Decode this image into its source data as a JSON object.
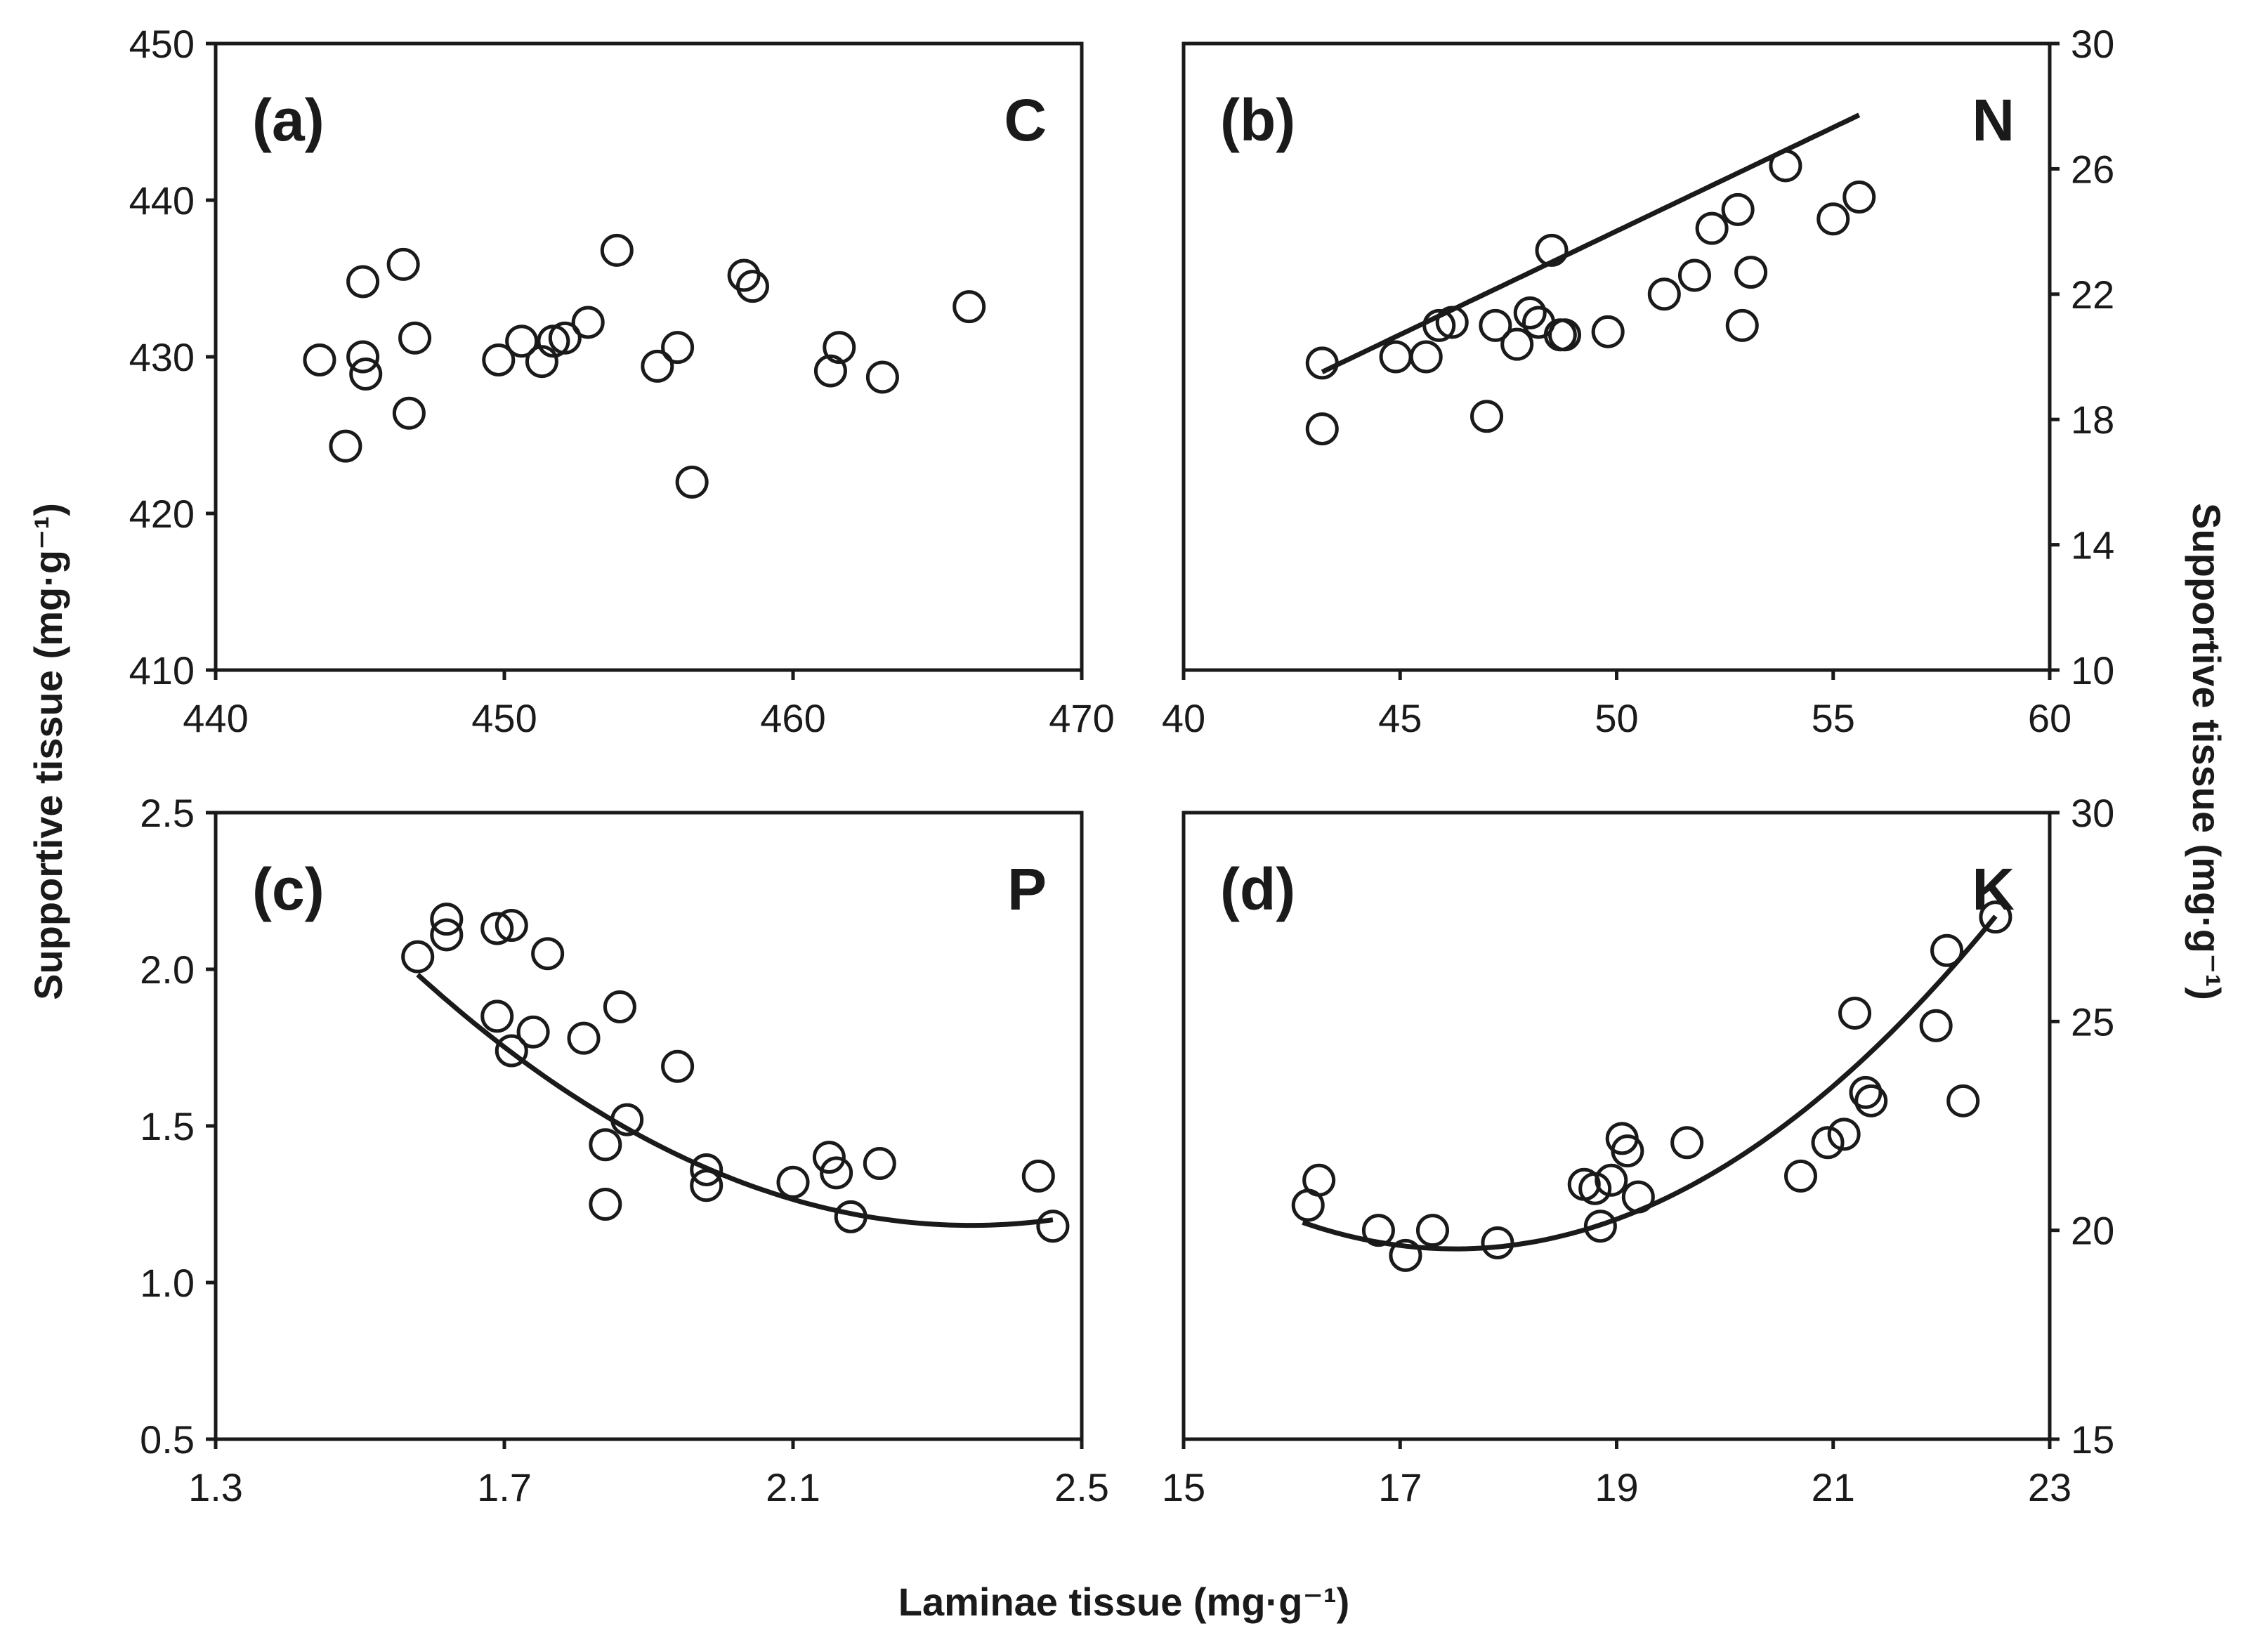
{
  "axis_titles": {
    "left": "Supportive tissue (mg·g⁻¹)",
    "right": "Supportive tissue (mg·g⁻¹)",
    "bottom": "Laminae tissue (mg·g⁻¹)"
  },
  "chart_data": [
    {
      "type": "scatter",
      "panel": "(a)",
      "element": "C",
      "xlim": [
        440,
        470
      ],
      "ylim": [
        410,
        450
      ],
      "xticks": [
        440,
        450,
        460,
        470
      ],
      "yticks": [
        410,
        420,
        430,
        440,
        450
      ],
      "x_tick_labels": [
        "440",
        "450",
        "460",
        "470"
      ],
      "y_tick_labels": [
        "410",
        "420",
        "430",
        "440",
        "450"
      ],
      "y_axis_side": "left",
      "points": [
        [
          443.6,
          429.8
        ],
        [
          444.5,
          424.3
        ],
        [
          445.1,
          434.8
        ],
        [
          445.1,
          430.0
        ],
        [
          445.2,
          428.9
        ],
        [
          446.5,
          435.9
        ],
        [
          446.7,
          426.4
        ],
        [
          446.9,
          431.2
        ],
        [
          449.8,
          429.8
        ],
        [
          450.6,
          431.0
        ],
        [
          451.3,
          429.7
        ],
        [
          451.7,
          431.0
        ],
        [
          452.1,
          431.2
        ],
        [
          452.9,
          432.2
        ],
        [
          453.9,
          436.8
        ],
        [
          455.3,
          429.4
        ],
        [
          456.0,
          430.6
        ],
        [
          456.5,
          422.0
        ],
        [
          458.3,
          435.2
        ],
        [
          458.6,
          434.5
        ],
        [
          461.3,
          429.1
        ],
        [
          461.6,
          430.6
        ],
        [
          463.1,
          428.7
        ],
        [
          466.1,
          433.2
        ]
      ],
      "fit": null
    },
    {
      "type": "scatter",
      "panel": "(b)",
      "element": "N",
      "xlim": [
        40,
        60
      ],
      "ylim": [
        10,
        30
      ],
      "xticks": [
        40,
        45,
        50,
        55,
        60
      ],
      "yticks": [
        10,
        14,
        18,
        22,
        26,
        30
      ],
      "x_tick_labels": [
        "40",
        "45",
        "50",
        "55",
        "60"
      ],
      "y_tick_labels": [
        "10",
        "14",
        "18",
        "22",
        "26",
        "30"
      ],
      "y_axis_side": "right",
      "points": [
        [
          43.2,
          19.8
        ],
        [
          43.2,
          17.7
        ],
        [
          44.9,
          20.0
        ],
        [
          45.6,
          20.0
        ],
        [
          45.9,
          21.0
        ],
        [
          46.2,
          21.1
        ],
        [
          47.0,
          18.1
        ],
        [
          47.2,
          21.0
        ],
        [
          47.7,
          20.4
        ],
        [
          48.0,
          21.4
        ],
        [
          48.2,
          21.1
        ],
        [
          48.5,
          23.4
        ],
        [
          48.7,
          20.7
        ],
        [
          48.8,
          20.7
        ],
        [
          49.8,
          20.8
        ],
        [
          51.1,
          22.0
        ],
        [
          51.8,
          22.6
        ],
        [
          52.2,
          24.1
        ],
        [
          52.8,
          24.7
        ],
        [
          52.9,
          21.0
        ],
        [
          53.1,
          22.7
        ],
        [
          53.9,
          26.1
        ],
        [
          55.0,
          24.4
        ],
        [
          55.6,
          25.1
        ]
      ],
      "fit": {
        "kind": "linear",
        "x_range": [
          43.2,
          55.6
        ],
        "coef": [
          -9.06,
          0.6615
        ]
      }
    },
    {
      "type": "scatter",
      "panel": "(c)",
      "element": "P",
      "xlim": [
        1.3,
        2.5
      ],
      "ylim": [
        0.5,
        2.5
      ],
      "xticks": [
        1.3,
        1.7,
        2.1,
        2.5
      ],
      "yticks": [
        0.5,
        1.0,
        1.5,
        2.0,
        2.5
      ],
      "x_tick_labels": [
        "1.3",
        "1.7",
        "2.1",
        "2.5"
      ],
      "y_tick_labels": [
        "0.5",
        "1.0",
        "1.5",
        "2.0",
        "2.5"
      ],
      "y_axis_side": "left",
      "points": [
        [
          1.58,
          2.04
        ],
        [
          1.62,
          2.16
        ],
        [
          1.62,
          2.11
        ],
        [
          1.69,
          1.85
        ],
        [
          1.69,
          2.13
        ],
        [
          1.71,
          1.74
        ],
        [
          1.71,
          2.14
        ],
        [
          1.74,
          1.8
        ],
        [
          1.76,
          2.05
        ],
        [
          1.81,
          1.78
        ],
        [
          1.84,
          1.44
        ],
        [
          1.84,
          1.25
        ],
        [
          1.86,
          1.88
        ],
        [
          1.87,
          1.52
        ],
        [
          1.94,
          1.69
        ],
        [
          1.98,
          1.36
        ],
        [
          1.98,
          1.31
        ],
        [
          2.1,
          1.32
        ],
        [
          2.15,
          1.4
        ],
        [
          2.16,
          1.35
        ],
        [
          2.18,
          1.21
        ],
        [
          2.22,
          1.38
        ],
        [
          2.44,
          1.34
        ],
        [
          2.46,
          1.18
        ]
      ],
      "fit": {
        "kind": "quadratic",
        "x_range": [
          1.58,
          2.46
        ],
        "coef": [
          8.686,
          -6.396,
          1.363
        ]
      }
    },
    {
      "type": "scatter",
      "panel": "(d)",
      "element": "K",
      "xlim": [
        15,
        23
      ],
      "ylim": [
        15,
        30
      ],
      "xticks": [
        15,
        17,
        19,
        21,
        23
      ],
      "yticks": [
        15,
        20,
        25,
        30
      ],
      "x_tick_labels": [
        "15",
        "17",
        "19",
        "21",
        "23"
      ],
      "y_tick_labels": [
        "15",
        "20",
        "25",
        "30"
      ],
      "y_axis_side": "right",
      "points": [
        [
          16.15,
          20.6
        ],
        [
          16.25,
          21.2
        ],
        [
          16.8,
          20.0
        ],
        [
          17.05,
          19.4
        ],
        [
          17.3,
          20.0
        ],
        [
          17.9,
          19.7
        ],
        [
          18.7,
          21.1
        ],
        [
          18.8,
          21.0
        ],
        [
          18.85,
          20.1
        ],
        [
          18.95,
          21.2
        ],
        [
          19.05,
          22.2
        ],
        [
          19.1,
          21.9
        ],
        [
          19.2,
          20.8
        ],
        [
          19.65,
          22.1
        ],
        [
          20.7,
          21.3
        ],
        [
          20.95,
          22.1
        ],
        [
          21.1,
          22.3
        ],
        [
          21.2,
          25.2
        ],
        [
          21.3,
          23.3
        ],
        [
          21.35,
          23.1
        ],
        [
          21.95,
          24.9
        ],
        [
          22.05,
          26.7
        ],
        [
          22.2,
          23.1
        ],
        [
          22.5,
          27.5
        ]
      ],
      "fit": {
        "kind": "quadratic",
        "x_range": [
          16.1,
          22.5
        ],
        "coef": [
          117.56,
          -11.195,
          0.3197
        ]
      }
    }
  ]
}
